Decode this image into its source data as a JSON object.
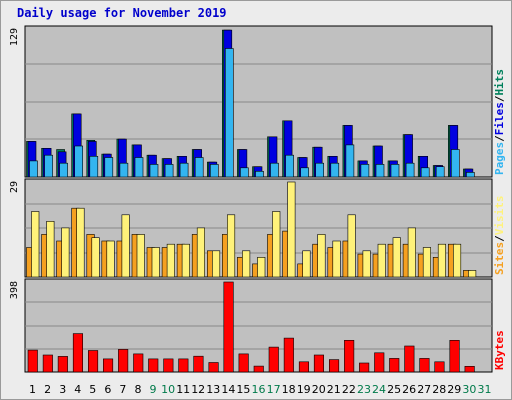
{
  "title": "Daily usage for November 2019",
  "colors": {
    "hits": "#00805c",
    "files": "#0000e0",
    "pages": "#33b5f0",
    "visits": "#f5a020",
    "sites": "#fff27a",
    "kbytes": "#ff0000",
    "grid": "#888888",
    "plot_bg": "#c0c0c0",
    "weekend_day": "#007a4a",
    "weekday": "#000000"
  },
  "chart_data": [
    {
      "type": "bar",
      "title": "Daily usage for November 2019",
      "ymax_label": "129",
      "ylim": [
        0,
        129
      ],
      "legend_right": [
        {
          "text": "Pages",
          "color": "#33b5f0"
        },
        {
          "text": "Files",
          "color": "#0000e0"
        },
        {
          "text": "Hits",
          "color": "#00805c"
        }
      ],
      "categories": [
        "1",
        "2",
        "3",
        "4",
        "5",
        "6",
        "7",
        "8",
        "9",
        "10",
        "11",
        "12",
        "13",
        "14",
        "15",
        "16",
        "17",
        "18",
        "19",
        "20",
        "21",
        "22",
        "23",
        "24",
        "25",
        "26",
        "27",
        "28",
        "29",
        "30",
        "31"
      ],
      "series": [
        {
          "name": "Hits",
          "values": [
            31,
            25,
            24,
            55,
            32,
            20,
            33,
            28,
            19,
            16,
            18,
            24,
            13,
            128,
            24,
            9,
            35,
            49,
            17,
            26,
            18,
            45,
            14,
            27,
            14,
            37,
            18,
            10,
            45,
            7,
            0
          ]
        },
        {
          "name": "Files",
          "values": [
            31,
            25,
            22,
            55,
            31,
            20,
            33,
            28,
            19,
            16,
            18,
            24,
            13,
            128,
            24,
            9,
            35,
            49,
            17,
            26,
            18,
            45,
            14,
            27,
            14,
            37,
            18,
            10,
            45,
            7,
            0
          ]
        },
        {
          "name": "Pages",
          "values": [
            14,
            19,
            12,
            27,
            18,
            17,
            12,
            17,
            11,
            11,
            12,
            17,
            11,
            112,
            8,
            5,
            12,
            19,
            8,
            12,
            12,
            28,
            11,
            11,
            11,
            12,
            8,
            9,
            24,
            4,
            0
          ]
        }
      ]
    },
    {
      "type": "bar",
      "ymax_label": "29",
      "ylim": [
        0,
        29
      ],
      "legend_right": [
        {
          "text": "Sites",
          "color": "#f5a020"
        },
        {
          "text": "/",
          "color": "#000000"
        },
        {
          "text": "Visits",
          "color": "#fff27a"
        }
      ],
      "categories": [
        "1",
        "2",
        "3",
        "4",
        "5",
        "6",
        "7",
        "8",
        "9",
        "10",
        "11",
        "12",
        "13",
        "14",
        "15",
        "16",
        "17",
        "18",
        "19",
        "20",
        "21",
        "22",
        "23",
        "24",
        "25",
        "26",
        "27",
        "28",
        "29",
        "30",
        "31"
      ],
      "series": [
        {
          "name": "Visits",
          "values": [
            9,
            13,
            11,
            21,
            13,
            11,
            11,
            13,
            9,
            9,
            10,
            13,
            8,
            13,
            6,
            4,
            13,
            14,
            4,
            10,
            9,
            11,
            7,
            7,
            10,
            10,
            7,
            6,
            10,
            2,
            0
          ]
        },
        {
          "name": "Sites",
          "values": [
            20,
            17,
            15,
            21,
            12,
            11,
            19,
            13,
            9,
            10,
            10,
            15,
            8,
            19,
            8,
            6,
            20,
            29,
            8,
            13,
            11,
            19,
            8,
            10,
            12,
            15,
            9,
            10,
            10,
            2,
            0
          ]
        }
      ]
    },
    {
      "type": "bar",
      "ymax_label": "398",
      "ylim": [
        0,
        398
      ],
      "legend_right": [
        {
          "text": "KBytes",
          "color": "#ff0000"
        }
      ],
      "categories": [
        "1",
        "2",
        "3",
        "4",
        "5",
        "6",
        "7",
        "8",
        "9",
        "10",
        "11",
        "12",
        "13",
        "14",
        "15",
        "16",
        "17",
        "18",
        "19",
        "20",
        "21",
        "22",
        "23",
        "24",
        "25",
        "26",
        "27",
        "28",
        "29",
        "30",
        "31"
      ],
      "series": [
        {
          "name": "KBytes",
          "values": [
            97,
            75,
            69,
            170,
            95,
            58,
            100,
            80,
            58,
            58,
            58,
            70,
            42,
            398,
            80,
            26,
            110,
            150,
            45,
            75,
            55,
            140,
            40,
            85,
            60,
            115,
            60,
            45,
            140,
            25,
            0
          ]
        }
      ]
    }
  ],
  "weekend_days": [
    "9",
    "10",
    "16",
    "17",
    "23",
    "24",
    "30",
    "31"
  ]
}
